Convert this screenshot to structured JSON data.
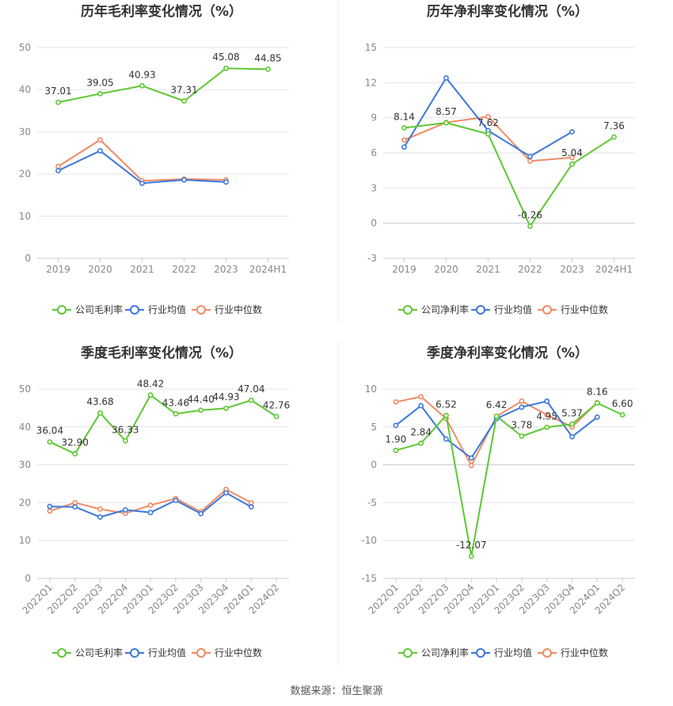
{
  "source_text": "数据来源：恒生聚源",
  "colors": {
    "company": "#5dc832",
    "avg": "#3b78dc",
    "median": "#f08a64",
    "axis_text": "#888888",
    "title": "#333333",
    "grid": "#e6e6e6"
  },
  "chart_data": [
    {
      "type": "line",
      "title": "历年毛利率变化情况（%）",
      "categories": [
        "2019",
        "2020",
        "2021",
        "2022",
        "2023",
        "2024H1"
      ],
      "ylim": [
        0,
        50
      ],
      "yticks": [
        0,
        10,
        20,
        30,
        40,
        50
      ],
      "ytick_labels": [
        "0",
        "10",
        "20",
        "30",
        "40",
        "50"
      ],
      "rotate_xlabels": false,
      "legend": "bottom",
      "series": [
        {
          "name": "公司毛利率",
          "color_key": "company",
          "labeled": true,
          "values": [
            37.01,
            39.05,
            40.93,
            37.31,
            45.08,
            44.85
          ],
          "labels": [
            "37.01",
            "39.05",
            "40.93",
            "37.31",
            "45.08",
            "44.85"
          ],
          "label_pos": [
            "above",
            "above",
            "above",
            "above",
            "above",
            "above"
          ]
        },
        {
          "name": "行业均值",
          "color_key": "avg",
          "labeled": false,
          "values": [
            20.8,
            25.5,
            17.8,
            18.6,
            18.1,
            null
          ]
        },
        {
          "name": "行业中位数",
          "color_key": "median",
          "labeled": false,
          "values": [
            21.8,
            28.1,
            18.4,
            18.8,
            18.6,
            null
          ]
        }
      ]
    },
    {
      "type": "line",
      "title": "历年净利率变化情况（%）",
      "categories": [
        "2019",
        "2020",
        "2021",
        "2022",
        "2023",
        "2024H1"
      ],
      "ylim": [
        -3,
        15
      ],
      "yticks": [
        -3,
        0,
        3,
        6,
        9,
        12,
        15
      ],
      "ytick_labels": [
        "-3",
        "0",
        "3",
        "6",
        "9",
        "12",
        "15"
      ],
      "rotate_xlabels": false,
      "legend": "bottom",
      "series": [
        {
          "name": "公司净利率",
          "color_key": "company",
          "labeled": true,
          "values": [
            8.14,
            8.57,
            7.62,
            -0.26,
            5.04,
            7.36
          ],
          "labels": [
            "8.14",
            "8.57",
            "7.62",
            "-0.26",
            "5.04",
            "7.36"
          ],
          "label_pos": [
            "above",
            "above",
            "above",
            "above",
            "above",
            "above"
          ]
        },
        {
          "name": "行业均值",
          "color_key": "avg",
          "labeled": false,
          "values": [
            6.5,
            12.4,
            7.9,
            5.7,
            7.8,
            null
          ]
        },
        {
          "name": "行业中位数",
          "color_key": "median",
          "labeled": false,
          "values": [
            7.1,
            8.6,
            9.1,
            5.3,
            5.6,
            null
          ]
        }
      ]
    },
    {
      "type": "line",
      "title": "季度毛利率变化情况（%）",
      "categories": [
        "2022Q1",
        "2022Q2",
        "2022Q3",
        "2022Q4",
        "2023Q1",
        "2023Q2",
        "2023Q3",
        "2023Q4",
        "2024Q1",
        "2024Q2"
      ],
      "ylim": [
        0,
        50
      ],
      "yticks": [
        0,
        10,
        20,
        30,
        40,
        50
      ],
      "ytick_labels": [
        "0",
        "10",
        "20",
        "30",
        "40",
        "50"
      ],
      "rotate_xlabels": true,
      "legend": "bottom",
      "series": [
        {
          "name": "公司毛利率",
          "color_key": "company",
          "labeled": true,
          "values": [
            36.04,
            32.9,
            43.68,
            36.33,
            48.42,
            43.46,
            44.4,
            44.93,
            47.04,
            42.76
          ],
          "labels": [
            "36.04",
            "32.90",
            "43.68",
            "36.33",
            "48.42",
            "43.46",
            "44.40",
            "44.93",
            "47.04",
            "42.76"
          ],
          "label_pos": [
            "above",
            "above",
            "above",
            "above",
            "above",
            "above",
            "above",
            "above",
            "above",
            "above"
          ]
        },
        {
          "name": "行业均值",
          "color_key": "avg",
          "labeled": false,
          "values": [
            19.0,
            18.9,
            16.2,
            18.1,
            17.4,
            20.6,
            17.1,
            22.6,
            18.9,
            null
          ]
        },
        {
          "name": "行业中位数",
          "color_key": "median",
          "labeled": false,
          "values": [
            17.8,
            20.0,
            18.3,
            17.2,
            19.3,
            21.1,
            17.6,
            23.5,
            20.0,
            null
          ]
        }
      ]
    },
    {
      "type": "line",
      "title": "季度净利率变化情况（%）",
      "categories": [
        "2022Q1",
        "2022Q2",
        "2022Q3",
        "2022Q4",
        "2023Q1",
        "2023Q2",
        "2023Q3",
        "2023Q4",
        "2024Q1",
        "2024Q2"
      ],
      "ylim": [
        -15,
        10
      ],
      "yticks": [
        -15,
        -10,
        -5,
        0,
        5,
        10
      ],
      "ytick_labels": [
        "-15",
        "-10",
        "-5",
        "0",
        "5",
        "10"
      ],
      "rotate_xlabels": true,
      "legend": "bottom",
      "series": [
        {
          "name": "公司净利率",
          "color_key": "company",
          "labeled": true,
          "values": [
            1.9,
            2.84,
            6.52,
            -12.07,
            6.42,
            3.78,
            4.95,
            5.37,
            8.16,
            6.6
          ],
          "labels": [
            "1.90",
            "2.84",
            "6.52",
            "-12.07",
            "6.42",
            "3.78",
            "4.95",
            "5.37",
            "8.16",
            "6.60"
          ],
          "label_pos": [
            "above",
            "above",
            "above",
            "above",
            "above",
            "above",
            "above",
            "above",
            "above",
            "above"
          ]
        },
        {
          "name": "行业均值",
          "color_key": "avg",
          "labeled": false,
          "values": [
            5.2,
            7.8,
            3.4,
            0.9,
            6.1,
            7.6,
            8.4,
            3.7,
            6.3,
            null
          ]
        },
        {
          "name": "行业中位数",
          "color_key": "median",
          "labeled": false,
          "values": [
            8.3,
            9.0,
            6.1,
            -0.1,
            6.4,
            8.4,
            6.6,
            5.0,
            8.2,
            null
          ]
        }
      ]
    }
  ]
}
